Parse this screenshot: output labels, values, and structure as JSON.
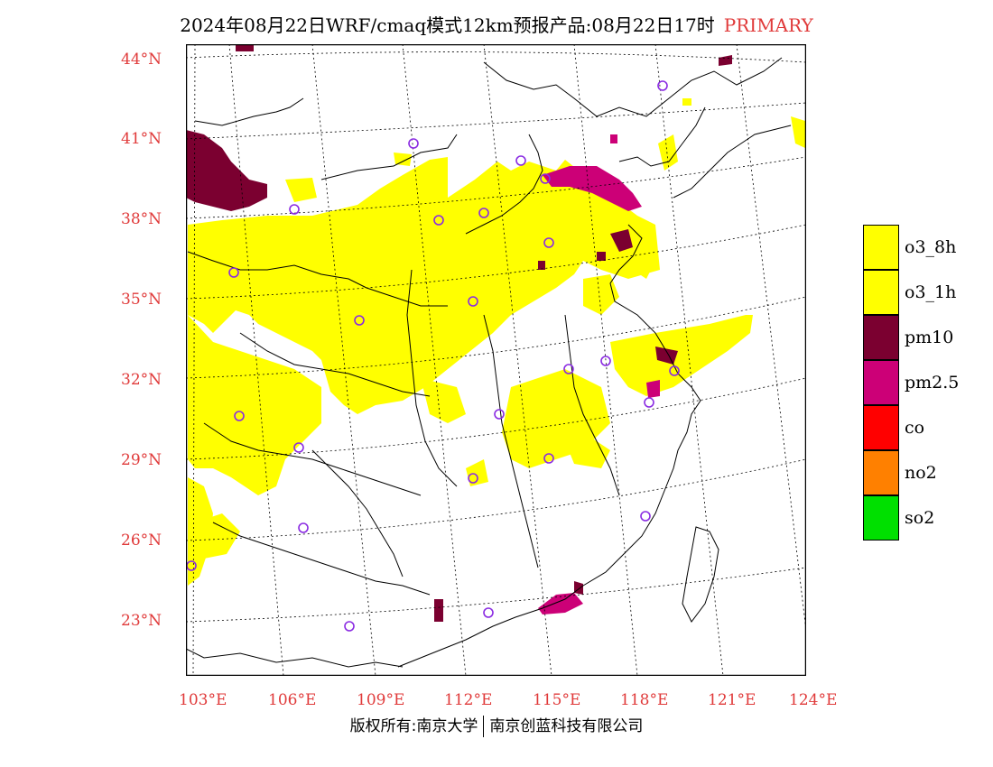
{
  "title": {
    "main": "2024年08月22日WRF/cmaq模式12km预报产品:08月22日17时",
    "tag": "PRIMARY"
  },
  "lat_labels": [
    "44°N",
    "41°N",
    "38°N",
    "35°N",
    "32°N",
    "29°N",
    "26°N",
    "23°N"
  ],
  "lon_labels": [
    "103°E",
    "106°E",
    "109°E",
    "112°E",
    "115°E",
    "118°E",
    "121°E",
    "124°E"
  ],
  "legend": [
    {
      "label": "o3_8h",
      "color": "#ffff00"
    },
    {
      "label": "o3_1h",
      "color": "#ffff00"
    },
    {
      "label": "pm10",
      "color": "#7b0030"
    },
    {
      "label": "pm2.5",
      "color": "#cc0077"
    },
    {
      "label": "co",
      "color": "#ff0000"
    },
    {
      "label": "no2",
      "color": "#ff8000"
    },
    {
      "label": "so2",
      "color": "#00e000"
    }
  ],
  "footer": {
    "left": "版权所有:南京大学",
    "right": "南京创蓝科技有限公司"
  },
  "colors": {
    "label_red": "#e03a3a",
    "station_circle": "#8a2be2"
  }
}
